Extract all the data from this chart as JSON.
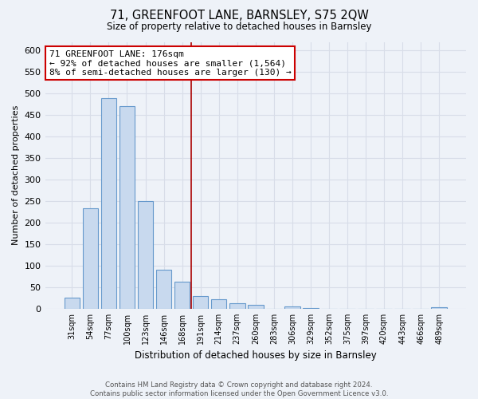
{
  "title": "71, GREENFOOT LANE, BARNSLEY, S75 2QW",
  "subtitle": "Size of property relative to detached houses in Barnsley",
  "xlabel": "Distribution of detached houses by size in Barnsley",
  "ylabel": "Number of detached properties",
  "bar_color": "#c8d9ee",
  "bar_edge_color": "#6699cc",
  "categories": [
    "31sqm",
    "54sqm",
    "77sqm",
    "100sqm",
    "123sqm",
    "146sqm",
    "168sqm",
    "191sqm",
    "214sqm",
    "237sqm",
    "260sqm",
    "283sqm",
    "306sqm",
    "329sqm",
    "352sqm",
    "375sqm",
    "397sqm",
    "420sqm",
    "443sqm",
    "466sqm",
    "489sqm"
  ],
  "values": [
    26,
    233,
    490,
    470,
    250,
    90,
    63,
    30,
    22,
    13,
    10,
    0,
    5,
    1,
    0,
    0,
    0,
    0,
    0,
    0,
    4
  ],
  "ylim": [
    0,
    620
  ],
  "yticks": [
    0,
    50,
    100,
    150,
    200,
    250,
    300,
    350,
    400,
    450,
    500,
    550,
    600
  ],
  "vline_x": 6.5,
  "vline_color": "#aa0000",
  "annotation_title": "71 GREENFOOT LANE: 176sqm",
  "annotation_line1": "← 92% of detached houses are smaller (1,564)",
  "annotation_line2": "8% of semi-detached houses are larger (130) →",
  "annotation_box_color": "#ffffff",
  "annotation_box_edge": "#cc0000",
  "footer1": "Contains HM Land Registry data © Crown copyright and database right 2024.",
  "footer2": "Contains public sector information licensed under the Open Government Licence v3.0.",
  "bg_color": "#eef2f8",
  "grid_color": "#d8dde8"
}
